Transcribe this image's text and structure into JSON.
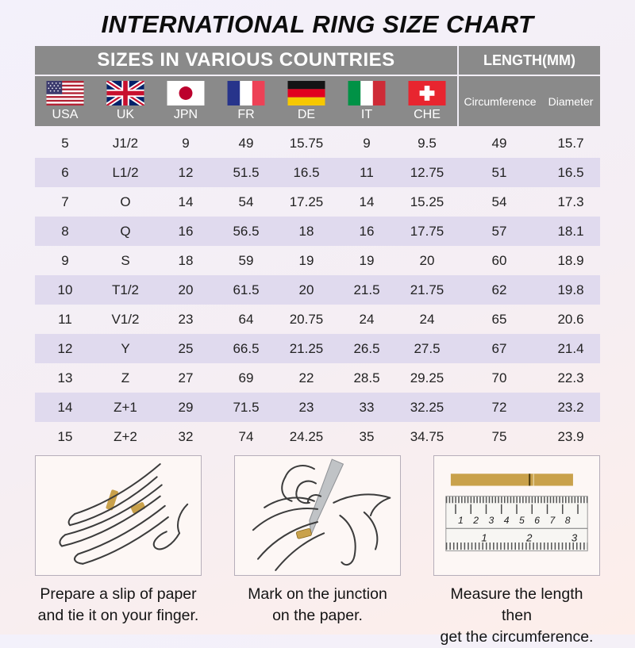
{
  "title": "INTERNATIONAL RING SIZE CHART",
  "table": {
    "left_header": "SIZES IN VARIOUS COUNTRIES",
    "right_header": "LENGTH(MM)",
    "countries": [
      {
        "code": "USA",
        "flag": "usa-flag-icon"
      },
      {
        "code": "UK",
        "flag": "uk-flag-icon"
      },
      {
        "code": "JPN",
        "flag": "japan-flag-icon"
      },
      {
        "code": "FR",
        "flag": "france-flag-icon"
      },
      {
        "code": "DE",
        "flag": "germany-flag-icon"
      },
      {
        "code": "IT",
        "flag": "italy-flag-icon"
      },
      {
        "code": "CHE",
        "flag": "switzerland-flag-icon"
      }
    ],
    "length_columns": [
      "Circumference",
      "Diameter"
    ],
    "rows": [
      [
        "5",
        "J1/2",
        "9",
        "49",
        "15.75",
        "9",
        "9.5",
        "49",
        "15.7"
      ],
      [
        "6",
        "L1/2",
        "12",
        "51.5",
        "16.5",
        "11",
        "12.75",
        "51",
        "16.5"
      ],
      [
        "7",
        "O",
        "14",
        "54",
        "17.25",
        "14",
        "15.25",
        "54",
        "17.3"
      ],
      [
        "8",
        "Q",
        "16",
        "56.5",
        "18",
        "16",
        "17.75",
        "57",
        "18.1"
      ],
      [
        "9",
        "S",
        "18",
        "59",
        "19",
        "19",
        "20",
        "60",
        "18.9"
      ],
      [
        "10",
        "T1/2",
        "20",
        "61.5",
        "20",
        "21.5",
        "21.75",
        "62",
        "19.8"
      ],
      [
        "11",
        "V1/2",
        "23",
        "64",
        "20.75",
        "24",
        "24",
        "65",
        "20.6"
      ],
      [
        "12",
        "Y",
        "25",
        "66.5",
        "21.25",
        "26.5",
        "27.5",
        "67",
        "21.4"
      ],
      [
        "13",
        "Z",
        "27",
        "69",
        "22",
        "28.5",
        "29.25",
        "70",
        "22.3"
      ],
      [
        "14",
        "Z+1",
        "29",
        "71.5",
        "23",
        "33",
        "32.25",
        "72",
        "23.2"
      ],
      [
        "15",
        "Z+2",
        "32",
        "74",
        "24.25",
        "35",
        "34.75",
        "75",
        "23.9"
      ]
    ]
  },
  "instructions": [
    {
      "icon": "hand-with-paper-strip-illustration",
      "caption": "Prepare a slip of paper\nand tie it on your finger."
    },
    {
      "icon": "pen-marking-junction-illustration",
      "caption": "Mark on the junction\non the paper."
    },
    {
      "icon": "ruler-measuring-strip-illustration",
      "caption": "Measure the length then\nget the circumference."
    }
  ],
  "ruler": {
    "cm_numbers": [
      "1",
      "2",
      "3",
      "4",
      "5",
      "6",
      "7",
      "8"
    ],
    "inch_numbers": [
      "1",
      "2",
      "3"
    ]
  },
  "colors": {
    "header_bg": "#8a8a8a",
    "row_stripe": "#e0daee",
    "paper_strip_gold": "#c9a14b",
    "bg_top": "#f3f1fb",
    "bg_bottom": "#fdeeea"
  }
}
